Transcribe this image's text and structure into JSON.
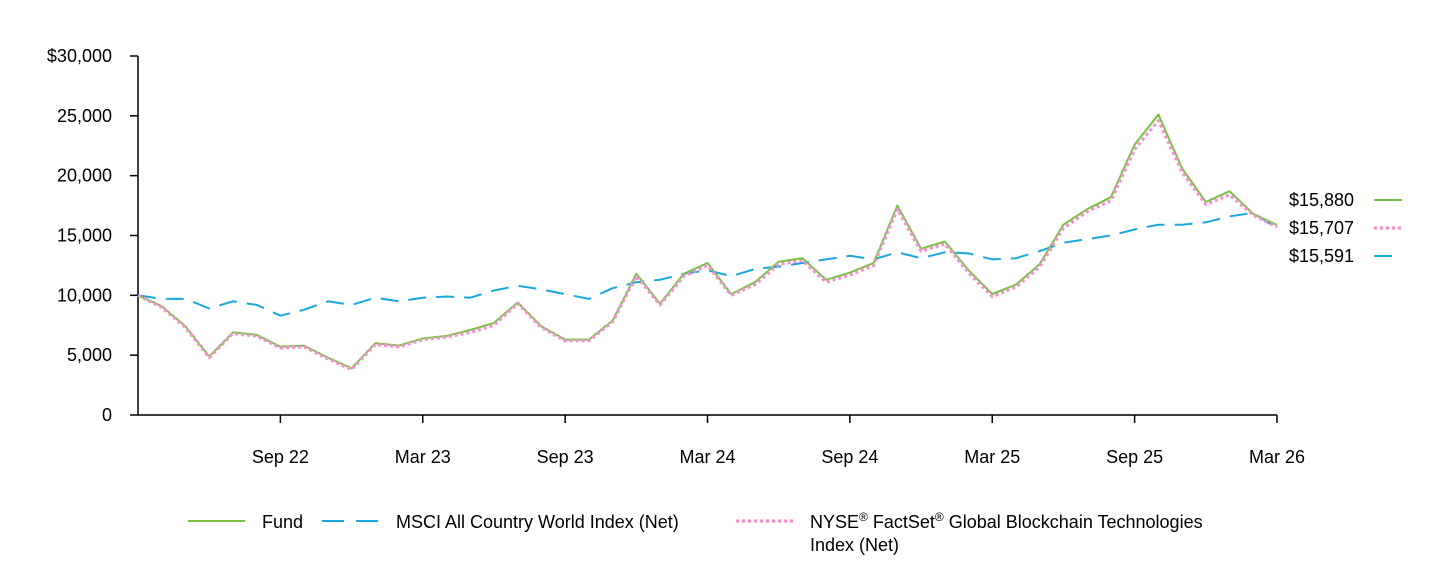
{
  "chart_data": {
    "type": "line",
    "title": "",
    "xlabel": "",
    "ylabel": "",
    "ylim": [
      0,
      30000
    ],
    "yticks": [
      {
        "value": 0,
        "label": "0"
      },
      {
        "value": 5000,
        "label": "5,000"
      },
      {
        "value": 10000,
        "label": "10,000"
      },
      {
        "value": 15000,
        "label": "15,000"
      },
      {
        "value": 20000,
        "label": "20,000"
      },
      {
        "value": 25000,
        "label": "25,000"
      },
      {
        "value": 30000,
        "label": "$30,000"
      }
    ],
    "x": [
      "Mar 22",
      "Apr 22",
      "May 22",
      "Jun 22",
      "Jul 22",
      "Aug 22",
      "Sep 22",
      "Oct 22",
      "Nov 22",
      "Dec 22",
      "Jan 23",
      "Feb 23",
      "Mar 23",
      "Apr 23",
      "May 23",
      "Jun 23",
      "Jul 23",
      "Aug 23",
      "Sep 23",
      "Oct 23",
      "Nov 23",
      "Dec 23",
      "Jan 24",
      "Feb 24",
      "Mar 24",
      "Apr 24",
      "May 24",
      "Jun 24",
      "Jul 24",
      "Aug 24",
      "Sep 24",
      "Oct 24",
      "Nov 24",
      "Dec 24",
      "Jan 25",
      "Feb 25",
      "Mar 25",
      "Apr 25",
      "May 25",
      "Jun 25",
      "Jul 25",
      "Aug 25",
      "Sep 25",
      "Oct 25",
      "Nov 25",
      "Dec 25",
      "Jan 26",
      "Feb 26",
      "Mar 26"
    ],
    "xticks": [
      {
        "index": 6,
        "label": "Sep 22"
      },
      {
        "index": 12,
        "label": "Mar 23"
      },
      {
        "index": 18,
        "label": "Sep 23"
      },
      {
        "index": 24,
        "label": "Mar 24"
      },
      {
        "index": 30,
        "label": "Sep 24"
      },
      {
        "index": 36,
        "label": "Mar 25"
      },
      {
        "index": 42,
        "label": "Sep 25"
      },
      {
        "index": 48,
        "label": "Mar 26"
      }
    ],
    "series": [
      {
        "name": "Fund",
        "color": "#7ac143",
        "style": "solid",
        "end_label": "$15,880",
        "values": [
          10000,
          9100,
          7400,
          4900,
          6900,
          6700,
          5700,
          5800,
          4800,
          3900,
          6000,
          5800,
          6400,
          6600,
          7100,
          7700,
          9400,
          7400,
          6300,
          6300,
          7900,
          11800,
          9300,
          11800,
          12700,
          10100,
          11100,
          12800,
          13100,
          11300,
          11900,
          12700,
          17500,
          13900,
          14500,
          12100,
          10100,
          10900,
          12600,
          15900,
          17200,
          18200,
          22600,
          25100,
          20600,
          17800,
          18700,
          16800,
          15880
        ]
      },
      {
        "name": "MSCI All Country World Index (Net)",
        "color": "#1aa7dd",
        "style": "dash",
        "end_label": "$15,591",
        "values": [
          10000,
          9700,
          9700,
          8900,
          9500,
          9200,
          8300,
          8800,
          9500,
          9200,
          9800,
          9500,
          9800,
          9900,
          9800,
          10400,
          10800,
          10500,
          10100,
          9700,
          10600,
          11100,
          11300,
          11800,
          12100,
          11600,
          12200,
          12400,
          12700,
          13000,
          13300,
          13000,
          13600,
          13100,
          13600,
          13500,
          13000,
          13100,
          13700,
          14400,
          14700,
          15000,
          15500,
          15900,
          15900,
          16100,
          16600,
          16900,
          15591
        ]
      },
      {
        "name": "NYSE® FactSet® Global Blockchain Technologies Index (Net)",
        "color": "#f48fcf",
        "style": "dot",
        "end_label": "$15,707",
        "values": [
          10000,
          9000,
          7300,
          4800,
          6800,
          6600,
          5600,
          5700,
          4700,
          3800,
          5900,
          5700,
          6300,
          6500,
          6900,
          7500,
          9300,
          7300,
          6200,
          6200,
          7800,
          11600,
          9200,
          11600,
          12500,
          10000,
          10900,
          12600,
          12900,
          11100,
          11700,
          12500,
          17200,
          13700,
          14300,
          11900,
          9900,
          10700,
          12400,
          15600,
          17000,
          17900,
          22200,
          24600,
          20300,
          17600,
          18400,
          16700,
          15707
        ]
      }
    ],
    "legend": {
      "placement": "bottom",
      "items": [
        {
          "series": 0,
          "text": "Fund"
        },
        {
          "series": 1,
          "text": "MSCI All Country World Index (Net)"
        },
        {
          "series": 2,
          "line1_parts": [
            "NYSE",
            "®",
            " FactSet",
            "®",
            " Global Blockchain Technologies"
          ],
          "line2": "Index (Net)"
        }
      ]
    }
  }
}
